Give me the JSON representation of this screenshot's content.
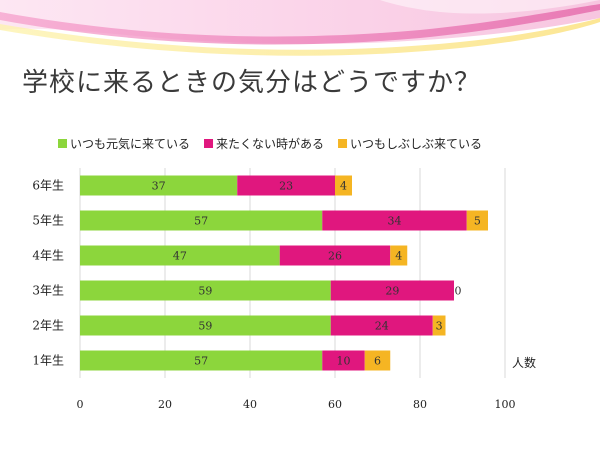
{
  "slide": {
    "title": "学校に来るときの気分はどうですか？"
  },
  "chart_data": {
    "type": "bar",
    "orientation": "horizontal",
    "stacked": true,
    "categories": [
      "6年生",
      "5年生",
      "4年生",
      "3年生",
      "2年生",
      "1年生"
    ],
    "series": [
      {
        "name": "いつも元気に来ている",
        "color": "#8cd63c",
        "values": [
          37,
          57,
          47,
          59,
          59,
          57
        ]
      },
      {
        "name": "来たくない時がある",
        "color": "#e0177e",
        "values": [
          23,
          34,
          26,
          29,
          24,
          10
        ]
      },
      {
        "name": "いつもしぶしぶ来ている",
        "color": "#f5b523",
        "values": [
          4,
          5,
          4,
          0,
          3,
          6
        ]
      }
    ],
    "value_labels": [
      [
        "37",
        "57",
        "47",
        "59",
        "59",
        "57"
      ],
      [
        "23",
        "34",
        "26",
        "29",
        "24",
        "10"
      ],
      [
        "4",
        "5",
        "4",
        "0",
        "3",
        "6"
      ]
    ],
    "xlim": [
      0,
      100
    ],
    "xticks": [
      0,
      20,
      40,
      60,
      80,
      100
    ],
    "xtick_labels": [
      "0",
      "20",
      "40",
      "60",
      "80",
      "100"
    ],
    "xlabel": "人数",
    "legend_position": "top",
    "grid": "vertical"
  }
}
